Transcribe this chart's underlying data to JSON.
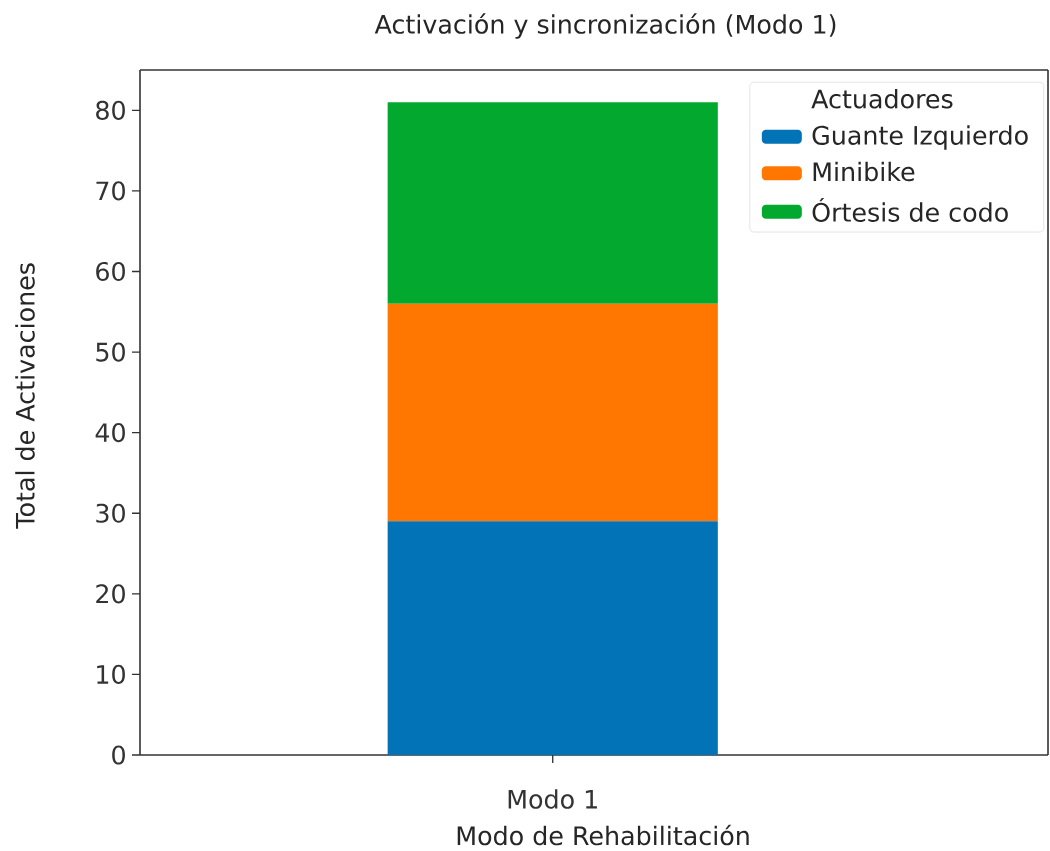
{
  "chart_data": {
    "type": "bar",
    "title": "Activación y sincronización (Modo 1)",
    "xlabel": "Modo de Rehabilitación",
    "ylabel": "Total de Activaciones",
    "legend_title": "Actuadores",
    "legend": "top right",
    "stacked": true,
    "categories": [
      "Modo 1"
    ],
    "series": [
      {
        "name": "Guante Izquierdo",
        "color": "#0173b6",
        "values": [
          29
        ]
      },
      {
        "name": "Minibike",
        "color": "#ff7700",
        "values": [
          27
        ]
      },
      {
        "name": "Órtesis de codo",
        "color": "#03a92e",
        "values": [
          25
        ]
      }
    ],
    "ylim": [
      0,
      85
    ],
    "yticks": [
      0,
      10,
      20,
      30,
      40,
      50,
      60,
      70,
      80
    ]
  }
}
